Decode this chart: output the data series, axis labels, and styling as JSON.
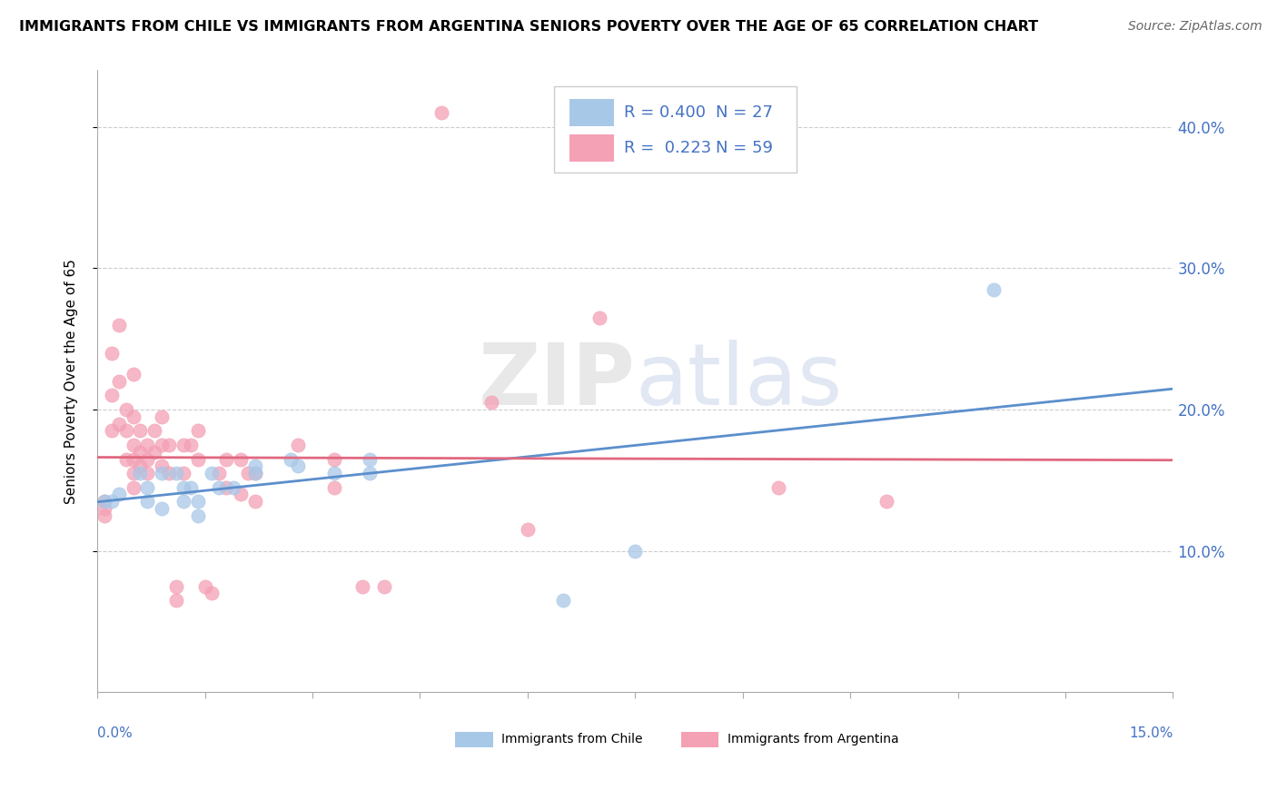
{
  "title": "IMMIGRANTS FROM CHILE VS IMMIGRANTS FROM ARGENTINA SENIORS POVERTY OVER THE AGE OF 65 CORRELATION CHART",
  "source": "Source: ZipAtlas.com",
  "ylabel": "Seniors Poverty Over the Age of 65",
  "xlim": [
    0.0,
    0.15
  ],
  "ylim": [
    0.0,
    0.44
  ],
  "yticks": [
    0.1,
    0.2,
    0.3,
    0.4
  ],
  "right_ytick_labels": [
    "10.0%",
    "20.0%",
    "30.0%",
    "40.0%"
  ],
  "chile_color": "#A8C8E8",
  "argentina_color": "#F4A0B5",
  "chile_line_color": "#5B8FCC",
  "argentina_line_color": "#E06880",
  "legend_color": "#4472C4",
  "chile_R": 0.4,
  "chile_N": 27,
  "argentina_R": 0.223,
  "argentina_N": 59,
  "watermark": "ZIPatlas",
  "background_color": "#FFFFFF",
  "grid_color": "#CCCCCC",
  "chile_points": [
    [
      0.001,
      0.135
    ],
    [
      0.002,
      0.135
    ],
    [
      0.003,
      0.14
    ],
    [
      0.006,
      0.155
    ],
    [
      0.007,
      0.145
    ],
    [
      0.007,
      0.135
    ],
    [
      0.009,
      0.155
    ],
    [
      0.009,
      0.13
    ],
    [
      0.011,
      0.155
    ],
    [
      0.012,
      0.145
    ],
    [
      0.012,
      0.135
    ],
    [
      0.013,
      0.145
    ],
    [
      0.014,
      0.135
    ],
    [
      0.014,
      0.125
    ],
    [
      0.016,
      0.155
    ],
    [
      0.017,
      0.145
    ],
    [
      0.019,
      0.145
    ],
    [
      0.022,
      0.16
    ],
    [
      0.022,
      0.155
    ],
    [
      0.027,
      0.165
    ],
    [
      0.028,
      0.16
    ],
    [
      0.033,
      0.155
    ],
    [
      0.038,
      0.165
    ],
    [
      0.038,
      0.155
    ],
    [
      0.065,
      0.065
    ],
    [
      0.075,
      0.1
    ],
    [
      0.125,
      0.285
    ]
  ],
  "argentina_points": [
    [
      0.001,
      0.135
    ],
    [
      0.001,
      0.13
    ],
    [
      0.001,
      0.125
    ],
    [
      0.002,
      0.24
    ],
    [
      0.002,
      0.21
    ],
    [
      0.002,
      0.185
    ],
    [
      0.003,
      0.26
    ],
    [
      0.003,
      0.22
    ],
    [
      0.003,
      0.19
    ],
    [
      0.004,
      0.2
    ],
    [
      0.004,
      0.185
    ],
    [
      0.004,
      0.165
    ],
    [
      0.005,
      0.225
    ],
    [
      0.005,
      0.195
    ],
    [
      0.005,
      0.175
    ],
    [
      0.005,
      0.165
    ],
    [
      0.005,
      0.155
    ],
    [
      0.005,
      0.145
    ],
    [
      0.006,
      0.185
    ],
    [
      0.006,
      0.17
    ],
    [
      0.006,
      0.16
    ],
    [
      0.007,
      0.175
    ],
    [
      0.007,
      0.165
    ],
    [
      0.007,
      0.155
    ],
    [
      0.008,
      0.185
    ],
    [
      0.008,
      0.17
    ],
    [
      0.009,
      0.195
    ],
    [
      0.009,
      0.175
    ],
    [
      0.009,
      0.16
    ],
    [
      0.01,
      0.175
    ],
    [
      0.01,
      0.155
    ],
    [
      0.011,
      0.065
    ],
    [
      0.011,
      0.075
    ],
    [
      0.012,
      0.175
    ],
    [
      0.012,
      0.155
    ],
    [
      0.013,
      0.175
    ],
    [
      0.014,
      0.185
    ],
    [
      0.014,
      0.165
    ],
    [
      0.015,
      0.075
    ],
    [
      0.016,
      0.07
    ],
    [
      0.017,
      0.155
    ],
    [
      0.018,
      0.165
    ],
    [
      0.018,
      0.145
    ],
    [
      0.02,
      0.165
    ],
    [
      0.02,
      0.14
    ],
    [
      0.021,
      0.155
    ],
    [
      0.022,
      0.155
    ],
    [
      0.022,
      0.135
    ],
    [
      0.028,
      0.175
    ],
    [
      0.033,
      0.165
    ],
    [
      0.033,
      0.145
    ],
    [
      0.037,
      0.075
    ],
    [
      0.04,
      0.075
    ],
    [
      0.048,
      0.41
    ],
    [
      0.055,
      0.205
    ],
    [
      0.06,
      0.115
    ],
    [
      0.07,
      0.265
    ],
    [
      0.095,
      0.145
    ],
    [
      0.11,
      0.135
    ]
  ]
}
